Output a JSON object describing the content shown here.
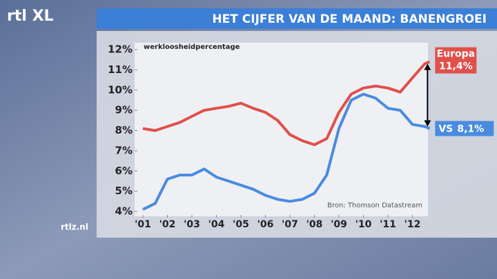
{
  "logo": "rtl XL",
  "website": "rtlz.nl",
  "chart_data": {
    "type": "line",
    "title": "HET CIJFER VAN DE MAAND: BANENGROEI",
    "y_label": "werkloosheidpercentage",
    "source": "Bron: Thomson Datastream",
    "xlim": [
      2001,
      2012.7
    ],
    "ylim": [
      4,
      12
    ],
    "xticks": [
      {
        "value": 2001,
        "label": "'01"
      },
      {
        "value": 2002,
        "label": "'02"
      },
      {
        "value": 2003,
        "label": "'03"
      },
      {
        "value": 2004,
        "label": "'04"
      },
      {
        "value": 2005,
        "label": "'05"
      },
      {
        "value": 2006,
        "label": "'06"
      },
      {
        "value": 2007,
        "label": "'07"
      },
      {
        "value": 2008,
        "label": "'08"
      },
      {
        "value": 2009,
        "label": "'09"
      },
      {
        "value": 2010,
        "label": "'10"
      },
      {
        "value": 2011,
        "label": "'11"
      },
      {
        "value": 2012,
        "label": "'12"
      }
    ],
    "yticks": [
      {
        "value": 4,
        "label": "4%"
      },
      {
        "value": 5,
        "label": "5%"
      },
      {
        "value": 6,
        "label": "6%"
      },
      {
        "value": 7,
        "label": "7%"
      },
      {
        "value": 8,
        "label": "8%"
      },
      {
        "value": 9,
        "label": "9%"
      },
      {
        "value": 10,
        "label": "10%"
      },
      {
        "value": 11,
        "label": "11%"
      },
      {
        "value": 12,
        "label": "12%"
      }
    ],
    "x": [
      2001.0,
      2001.5,
      2002.0,
      2002.5,
      2003.0,
      2003.5,
      2004.0,
      2004.5,
      2005.0,
      2005.5,
      2006.0,
      2006.5,
      2007.0,
      2007.5,
      2008.0,
      2008.5,
      2009.0,
      2009.5,
      2010.0,
      2010.5,
      2011.0,
      2011.5,
      2012.0,
      2012.5,
      2012.7
    ],
    "series": [
      {
        "name": "Europa",
        "color": "#e0504a",
        "end_label": {
          "value": 11.4,
          "label": "11,4%"
        },
        "values": [
          8.1,
          8.0,
          8.2,
          8.4,
          8.7,
          9.0,
          9.1,
          9.2,
          9.35,
          9.1,
          8.9,
          8.5,
          7.8,
          7.5,
          7.3,
          7.6,
          8.9,
          9.8,
          10.1,
          10.2,
          10.1,
          9.9,
          10.6,
          11.3,
          11.4
        ]
      },
      {
        "name": "VS",
        "color": "#4a8be0",
        "end_label": {
          "value": 8.1,
          "label": "8,1%"
        },
        "values": [
          4.1,
          4.4,
          5.6,
          5.8,
          5.8,
          6.1,
          5.7,
          5.5,
          5.3,
          5.1,
          4.8,
          4.6,
          4.5,
          4.6,
          4.9,
          5.8,
          8.1,
          9.5,
          9.8,
          9.6,
          9.1,
          9.0,
          8.3,
          8.2,
          8.1
        ]
      }
    ]
  }
}
